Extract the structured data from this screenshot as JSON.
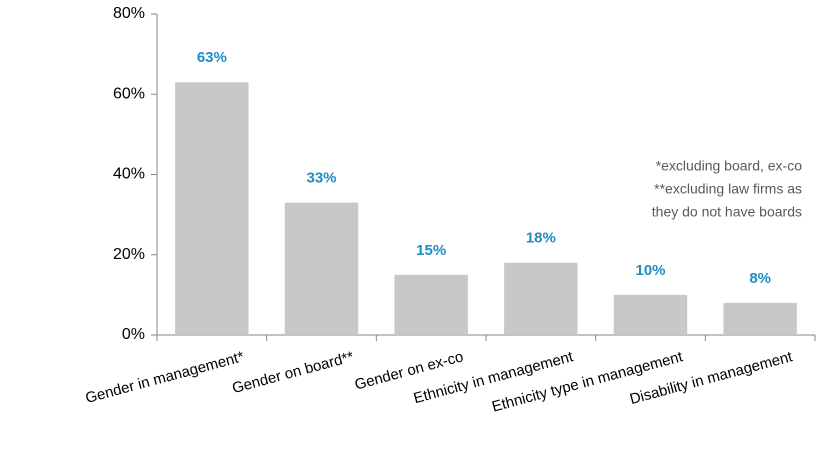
{
  "chart_data": {
    "type": "bar",
    "categories": [
      "Gender in management*",
      "Gender on board**",
      "Gender on ex-co",
      "Ethnicity in management",
      "Ethnicity type in management",
      "Disability in management"
    ],
    "values": [
      63,
      33,
      15,
      18,
      10,
      8
    ],
    "value_labels": [
      "63%",
      "33%",
      "15%",
      "18%",
      "10%",
      "8%"
    ],
    "color": "#c8c8c8",
    "ylim": [
      0,
      80
    ],
    "yticks": [
      {
        "value": 0,
        "label": "0%"
      },
      {
        "value": 20,
        "label": "20%"
      },
      {
        "value": 40,
        "label": "40%"
      },
      {
        "value": 60,
        "label": "60%"
      },
      {
        "value": 80,
        "label": "80%"
      }
    ],
    "annotations": [
      "*excluding board, ex-co",
      "**excluding law firms as",
      "they do not have boards"
    ]
  }
}
